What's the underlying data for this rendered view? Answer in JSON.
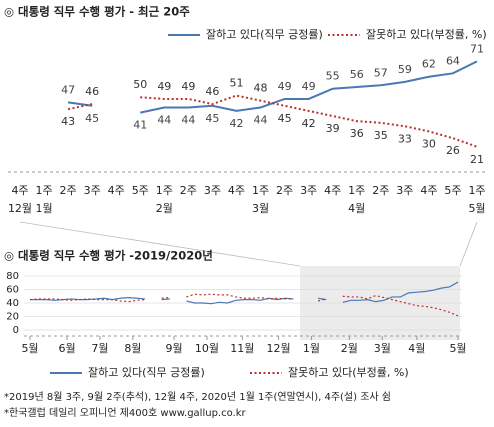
{
  "chart_data": [
    {
      "type": "line",
      "title": "◎ 대통령 직무 수행 평가 - 최근 20주",
      "categories": [
        "4주",
        "1주",
        "2주",
        "3주",
        "4주",
        "5주",
        "1주",
        "2주",
        "3주",
        "4주",
        "1주",
        "2주",
        "3주",
        "4주",
        "1주",
        "2주",
        "3주",
        "4주",
        "5주",
        "1주"
      ],
      "month_labels": [
        "12월",
        "1월",
        null,
        null,
        null,
        null,
        "2월",
        null,
        null,
        null,
        "3월",
        null,
        null,
        null,
        "4월",
        null,
        null,
        null,
        null,
        "5월"
      ],
      "ylim": [
        15,
        80
      ],
      "value_labels_shown": true,
      "series": [
        {
          "name": "잘하고 있다(직무 긍정률)",
          "color": "#4a78b4",
          "style": "solid",
          "values": [
            null,
            null,
            47,
            45,
            null,
            41,
            44,
            44,
            45,
            42,
            44,
            49,
            49,
            55,
            56,
            57,
            59,
            62,
            64,
            71
          ]
        },
        {
          "name": "잘못하고 있다(부정률, %)",
          "color": "#b8312f",
          "style": "dotted",
          "values": [
            null,
            null,
            43,
            46,
            null,
            50,
            49,
            49,
            46,
            51,
            48,
            45,
            42,
            39,
            36,
            35,
            33,
            30,
            26,
            21
          ]
        }
      ]
    },
    {
      "type": "line",
      "title": "◎ 대통령 직무 수행 평가 -2019/2020년",
      "x": [
        0,
        1,
        2,
        3,
        4,
        5,
        6,
        7,
        8,
        9,
        10,
        11,
        12,
        13,
        14,
        15,
        16,
        17,
        18,
        19,
        20,
        21,
        22,
        23,
        24,
        25,
        26,
        27,
        28,
        29,
        30,
        31,
        32,
        33,
        34,
        35,
        36,
        37,
        38,
        39,
        40,
        41,
        42,
        43,
        44,
        45,
        46,
        47,
        48,
        49,
        50,
        51,
        52
      ],
      "xlim": [
        0,
        52
      ],
      "xticks": [
        {
          "value": 0,
          "label": "5월"
        },
        {
          "value": 4.5,
          "label": "6월"
        },
        {
          "value": 8.5,
          "label": "7월"
        },
        {
          "value": 12.5,
          "label": "8월"
        },
        {
          "value": 17.5,
          "label": "9월"
        },
        {
          "value": 21.5,
          "label": "10월"
        },
        {
          "value": 25.8,
          "label": "11월"
        },
        {
          "value": 30.2,
          "label": "12월"
        },
        {
          "value": 34.2,
          "label": "1월"
        },
        {
          "value": 38.8,
          "label": "2월"
        },
        {
          "value": 42.8,
          "label": "3월"
        },
        {
          "value": 47,
          "label": "4월"
        },
        {
          "value": 52,
          "label": "5월"
        }
      ],
      "ylim": [
        0,
        80
      ],
      "yticks": [
        0,
        20,
        40,
        60,
        80
      ],
      "highlight_from": 35,
      "series": [
        {
          "name": "잘하고 있다(직무 긍정률)",
          "color": "#4a78b4",
          "style": "solid",
          "values": [
            45,
            45,
            45,
            44,
            45,
            46,
            45,
            45,
            46,
            47,
            45,
            47,
            48,
            47,
            46,
            null,
            45,
            46,
            null,
            43,
            40,
            40,
            39,
            41,
            40,
            44,
            45,
            45,
            44,
            47,
            45,
            47,
            46,
            null,
            null,
            47,
            45,
            null,
            41,
            44,
            44,
            45,
            42,
            44,
            49,
            49,
            55,
            56,
            57,
            59,
            62,
            64,
            71
          ]
        },
        {
          "name": "잘못하고 있다(부정률, %)",
          "color": "#b8312f",
          "style": "dotted",
          "values": [
            45,
            46,
            46,
            46,
            45,
            44,
            45,
            46,
            45,
            45,
            45,
            43,
            42,
            44,
            45,
            null,
            47,
            48,
            null,
            49,
            53,
            52,
            53,
            52,
            52,
            49,
            47,
            47,
            48,
            46,
            47,
            46,
            46,
            null,
            null,
            43,
            46,
            null,
            50,
            49,
            49,
            46,
            51,
            48,
            45,
            42,
            39,
            36,
            35,
            33,
            30,
            26,
            21
          ]
        }
      ]
    }
  ],
  "footnotes": [
    "*2019년 8월 3주, 9월 2주(추석), 12월 4주, 2020년 1월 1주(연말연시), 4주(설) 조사 쉼",
    "*한국갤럽 데일리 오피니언 제400호 www.gallup.co.kr"
  ]
}
